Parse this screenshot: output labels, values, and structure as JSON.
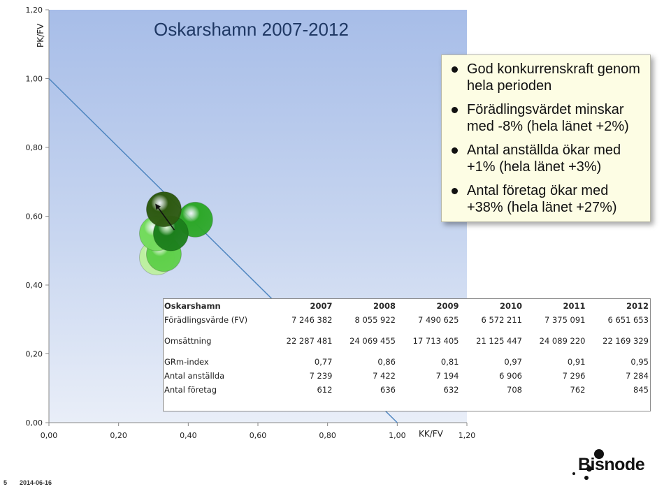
{
  "chart_data": {
    "type": "scatter",
    "title": "Oskarshamn 2007-2012",
    "xlabel": "KK/FV",
    "ylabel": "PK/FV",
    "xlim": [
      0,
      1.2
    ],
    "ylim": [
      0,
      1.2
    ],
    "x_ticks": [
      "0,00",
      "0,20",
      "0,40",
      "0,60",
      "0,80",
      "1,00",
      "1,20"
    ],
    "y_ticks": [
      "0,00",
      "0,20",
      "0,40",
      "0,60",
      "0,80",
      "1,00",
      "1,20"
    ],
    "grid": false,
    "reference_line": {
      "from": [
        0,
        1.0
      ],
      "to": [
        1.0,
        0
      ]
    },
    "points": [
      {
        "year": "2007",
        "x": 0.31,
        "y": 0.48,
        "color": "#bdf0a0"
      },
      {
        "year": "2008",
        "x": 0.33,
        "y": 0.49,
        "color": "#5fd04a"
      },
      {
        "year": "2009",
        "x": 0.31,
        "y": 0.55,
        "color": "#73db5c"
      },
      {
        "year": "2010",
        "x": 0.42,
        "y": 0.59,
        "color": "#2ea82a"
      },
      {
        "year": "2011",
        "x": 0.35,
        "y": 0.55,
        "color": "#1c7f1c"
      },
      {
        "year": "2012",
        "x": 0.33,
        "y": 0.62,
        "color": "#2e5a12"
      }
    ],
    "arrow": {
      "from": [
        0.36,
        0.56
      ],
      "to": [
        0.31,
        0.63
      ]
    }
  },
  "colors": {
    "plot_bg_top": "#a7bde8",
    "plot_bg_bottom": "#e9eef8",
    "line": "#4f86c0",
    "title": "#1f3864"
  },
  "callout": {
    "items": [
      "God konkurrenskraft genom hela perioden",
      "Förädlingsvärdet minskar med -8% (hela länet +2%)",
      "Antal anställda ökar med +1% (hela länet +3%)",
      "Antal företag ökar med +38% (hela länet +27%)"
    ]
  },
  "table": {
    "header": [
      "Oskarshamn",
      "2007",
      "2008",
      "2009",
      "2010",
      "2011",
      "2012"
    ],
    "rows": [
      [
        "Förädlingsvärde (FV)",
        "7 246 382",
        "8 055 922",
        "7 490 625",
        "6 572 211",
        "7 375 091",
        "6 651 653"
      ],
      [
        "Omsättning",
        "22 287 481",
        "24 069 455",
        "17 713 405",
        "21 125 447",
        "24 089 220",
        "22 169 329"
      ],
      [
        "GRm-index",
        "0,77",
        "0,86",
        "0,81",
        "0,97",
        "0,91",
        "0,95"
      ],
      [
        "Antal anställda",
        "7 239",
        "7 422",
        "7 194",
        "6 906",
        "7 296",
        "7 284"
      ],
      [
        "Antal företag",
        "612",
        "636",
        "632",
        "708",
        "762",
        "845"
      ]
    ]
  },
  "footer": {
    "page": "5",
    "date": "2014-06-16"
  },
  "logo": {
    "text": "Bisnode"
  }
}
